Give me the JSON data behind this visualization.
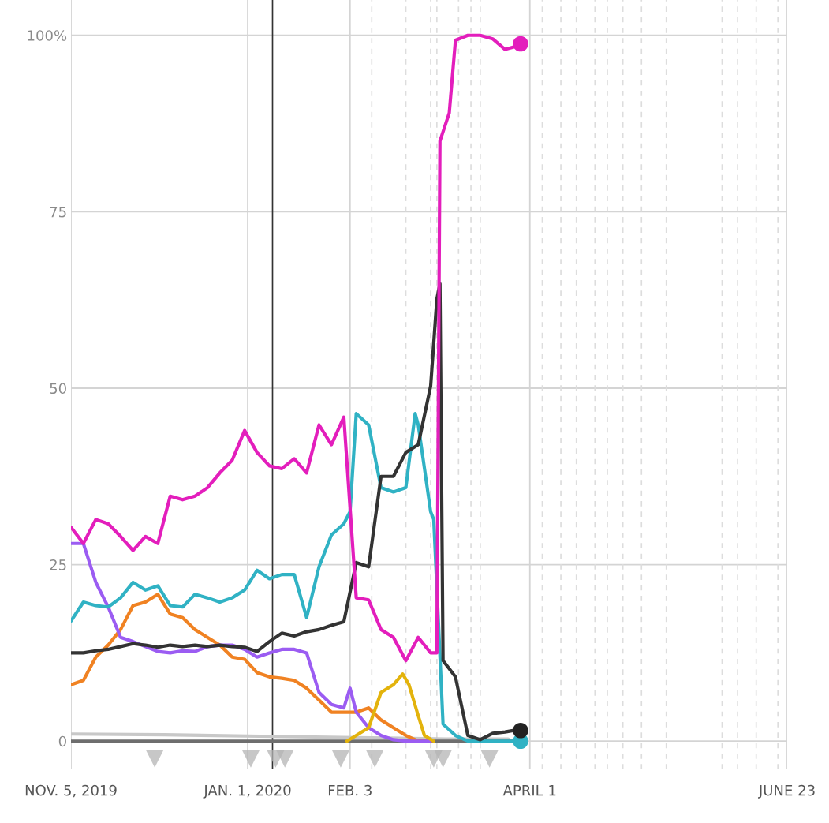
{
  "chart_data": {
    "type": "line",
    "xlim": [
      "2019-11-05",
      "2020-06-23"
    ],
    "xticks": [
      {
        "value": "2019-11-05",
        "label": "NOV. 5, 2019"
      },
      {
        "value": "2020-01-01",
        "label": "JAN. 1, 2020"
      },
      {
        "value": "2020-02-03",
        "label": "FEB. 3"
      },
      {
        "value": "2020-04-01",
        "label": "APRIL 1"
      },
      {
        "value": "2020-06-23",
        "label": "JUNE 23"
      }
    ],
    "ylim": [
      -4,
      105
    ],
    "yticks": [
      0,
      25,
      50,
      75,
      {
        "value": 100,
        "label": "100%"
      }
    ],
    "grid": true,
    "ref_lines": [
      {
        "axis": "x",
        "value": "2020-01-09",
        "color": "#333333",
        "line_style": "solid"
      },
      {
        "axis": "x",
        "value": "2020-02-10",
        "color": "#dddddd",
        "line_style": "dashed"
      },
      {
        "axis": "x",
        "value": "2020-02-21",
        "color": "#dddddd",
        "line_style": "dashed"
      },
      {
        "axis": "x",
        "value": "2020-02-29",
        "color": "#dddddd",
        "line_style": "dashed"
      },
      {
        "axis": "x",
        "value": "2020-03-02",
        "color": "#dddddd",
        "line_style": "dashed"
      },
      {
        "axis": "x",
        "value": "2020-03-09",
        "color": "#dddddd",
        "line_style": "dashed"
      },
      {
        "axis": "x",
        "value": "2020-03-13",
        "color": "#dddddd",
        "line_style": "dashed"
      },
      {
        "axis": "x",
        "value": "2020-03-16",
        "color": "#dddddd",
        "line_style": "dashed"
      },
      {
        "axis": "x",
        "value": "2020-04-05",
        "color": "#dddddd",
        "line_style": "dashed"
      },
      {
        "axis": "x",
        "value": "2020-04-11",
        "color": "#dddddd",
        "line_style": "dashed"
      },
      {
        "axis": "x",
        "value": "2020-04-16",
        "color": "#dddddd",
        "line_style": "dashed"
      },
      {
        "axis": "x",
        "value": "2020-04-22",
        "color": "#dddddd",
        "line_style": "dashed"
      },
      {
        "axis": "x",
        "value": "2020-04-26",
        "color": "#dddddd",
        "line_style": "dashed"
      },
      {
        "axis": "x",
        "value": "2020-05-01",
        "color": "#dddddd",
        "line_style": "dashed"
      },
      {
        "axis": "x",
        "value": "2020-05-07",
        "color": "#dddddd",
        "line_style": "dashed"
      },
      {
        "axis": "x",
        "value": "2020-05-15",
        "color": "#dddddd",
        "line_style": "dashed"
      },
      {
        "axis": "x",
        "value": "2020-06-02",
        "color": "#dddddd",
        "line_style": "dashed"
      },
      {
        "axis": "x",
        "value": "2020-06-07",
        "color": "#dddddd",
        "line_style": "dashed"
      },
      {
        "axis": "x",
        "value": "2020-06-13",
        "color": "#dddddd",
        "line_style": "dashed"
      },
      {
        "axis": "x",
        "value": "2020-06-20",
        "color": "#dddddd",
        "line_style": "dashed"
      }
    ],
    "series": [
      {
        "color": "#c8c8c8",
        "x": [
          "2019-11-05",
          "2019-12-05",
          "2020-01-05",
          "2020-02-05",
          "2020-03-05",
          "2020-03-25"
        ],
        "values": [
          1,
          0.9,
          0.7,
          0.5,
          0.3,
          0.3
        ]
      },
      {
        "color": "#6e6e6e",
        "x": [
          "2019-11-05",
          "2020-03-29"
        ],
        "values": [
          0,
          0
        ]
      },
      {
        "color": "#f08222",
        "x": [
          "2019-11-05",
          "2019-11-09",
          "2019-11-13",
          "2019-11-17",
          "2019-11-21",
          "2019-11-25",
          "2019-11-29",
          "2019-12-03",
          "2019-12-07",
          "2019-12-11",
          "2019-12-15",
          "2019-12-19",
          "2019-12-23",
          "2019-12-27",
          "2019-12-31",
          "2020-01-04",
          "2020-01-08",
          "2020-01-12",
          "2020-01-16",
          "2020-01-20",
          "2020-01-24",
          "2020-01-28",
          "2020-02-01",
          "2020-02-05",
          "2020-02-09",
          "2020-02-13",
          "2020-02-17",
          "2020-02-21",
          "2020-02-25",
          "2020-02-29"
        ],
        "values": [
          8,
          8.6,
          11.9,
          13.6,
          15.8,
          19.2,
          19.7,
          20.8,
          18,
          17.5,
          15.8,
          14.7,
          13.6,
          11.9,
          11.6,
          9.7,
          9.1,
          8.9,
          8.6,
          7.5,
          5.8,
          4.1,
          4.1,
          4.1,
          4.7,
          3,
          1.9,
          0.8,
          0,
          0
        ]
      },
      {
        "color": "#9b5cf2",
        "x": [
          "2019-11-05",
          "2019-11-09",
          "2019-11-13",
          "2019-11-17",
          "2019-11-21",
          "2019-11-25",
          "2019-11-29",
          "2019-12-03",
          "2019-12-07",
          "2019-12-11",
          "2019-12-15",
          "2019-12-19",
          "2019-12-23",
          "2019-12-27",
          "2019-12-31",
          "2020-01-04",
          "2020-01-08",
          "2020-01-12",
          "2020-01-16",
          "2020-01-20",
          "2020-01-24",
          "2020-01-28",
          "2020-02-01",
          "2020-02-03",
          "2020-02-05",
          "2020-02-09",
          "2020-02-13",
          "2020-02-17",
          "2020-02-21",
          "2020-02-29"
        ],
        "values": [
          28,
          28,
          22.5,
          19,
          14.7,
          14.1,
          13.4,
          12.7,
          12.5,
          12.8,
          12.7,
          13.4,
          13.6,
          13.6,
          13,
          11.9,
          12.5,
          13,
          13,
          12.5,
          6.9,
          5.2,
          4.7,
          7.5,
          4.1,
          1.9,
          0.8,
          0.2,
          0,
          0
        ]
      },
      {
        "color": "#e3b30c",
        "x": [
          "2020-02-02",
          "2020-02-05",
          "2020-02-09",
          "2020-02-13",
          "2020-02-17",
          "2020-02-20",
          "2020-02-22",
          "2020-02-25",
          "2020-02-27",
          "2020-03-01"
        ],
        "values": [
          0,
          0.8,
          1.9,
          6.9,
          8,
          9.5,
          8,
          3.6,
          0.8,
          0
        ]
      },
      {
        "color": "#30b2c4",
        "x": [
          "2019-11-05",
          "2019-11-09",
          "2019-11-13",
          "2019-11-17",
          "2019-11-21",
          "2019-11-25",
          "2019-11-29",
          "2019-12-03",
          "2019-12-07",
          "2019-12-11",
          "2019-12-15",
          "2019-12-19",
          "2019-12-23",
          "2019-12-27",
          "2019-12-31",
          "2020-01-04",
          "2020-01-08",
          "2020-01-12",
          "2020-01-16",
          "2020-01-20",
          "2020-01-24",
          "2020-01-28",
          "2020-02-01",
          "2020-02-03",
          "2020-02-05",
          "2020-02-09",
          "2020-02-13",
          "2020-02-17",
          "2020-02-21",
          "2020-02-24",
          "2020-02-25",
          "2020-02-29",
          "2020-03-01",
          "2020-03-04",
          "2020-03-08",
          "2020-03-12",
          "2020-03-16",
          "2020-03-20",
          "2020-03-24",
          "2020-03-28",
          "2020-03-29"
        ],
        "values": [
          17,
          19.7,
          19.2,
          19,
          20.3,
          22.5,
          21.4,
          22,
          19.2,
          19,
          20.8,
          20.3,
          19.7,
          20.3,
          21.4,
          24.2,
          23,
          23.6,
          23.6,
          17.5,
          24.7,
          29.2,
          30.8,
          32.5,
          46.4,
          44.8,
          35.9,
          35.3,
          35.9,
          46.4,
          44.8,
          32.5,
          31.4,
          2.4,
          0.8,
          0,
          0,
          0,
          0,
          0,
          0
        ]
      },
      {
        "color": "#333333",
        "x": [
          "2019-11-05",
          "2019-11-09",
          "2019-11-13",
          "2019-11-17",
          "2019-11-21",
          "2019-11-25",
          "2019-11-29",
          "2019-12-03",
          "2019-12-07",
          "2019-12-11",
          "2019-12-15",
          "2019-12-19",
          "2019-12-23",
          "2019-12-27",
          "2019-12-31",
          "2020-01-04",
          "2020-01-08",
          "2020-01-12",
          "2020-01-16",
          "2020-01-20",
          "2020-01-24",
          "2020-01-28",
          "2020-02-01",
          "2020-02-05",
          "2020-02-09",
          "2020-02-13",
          "2020-02-17",
          "2020-02-21",
          "2020-02-25",
          "2020-02-29",
          "2020-03-02",
          "2020-03-03",
          "2020-03-04",
          "2020-03-08",
          "2020-03-12",
          "2020-03-16",
          "2020-03-20",
          "2020-03-24",
          "2020-03-28",
          "2020-03-29"
        ],
        "values": [
          12.5,
          12.5,
          12.8,
          13,
          13.4,
          13.8,
          13.6,
          13.3,
          13.6,
          13.4,
          13.6,
          13.4,
          13.6,
          13.4,
          13.3,
          12.7,
          14.1,
          15.3,
          14.9,
          15.5,
          15.8,
          16.4,
          16.9,
          25.3,
          24.7,
          37.5,
          37.5,
          40.9,
          42,
          50.3,
          62.6,
          64.8,
          11.4,
          9.1,
          0.8,
          0.2,
          1.1,
          1.3,
          1.6,
          1.5
        ]
      },
      {
        "color": "#e31ebc",
        "x": [
          "2019-11-05",
          "2019-11-09",
          "2019-11-13",
          "2019-11-17",
          "2019-11-21",
          "2019-11-25",
          "2019-11-29",
          "2019-12-03",
          "2019-12-07",
          "2019-12-11",
          "2019-12-15",
          "2019-12-19",
          "2019-12-23",
          "2019-12-27",
          "2019-12-31",
          "2020-01-04",
          "2020-01-08",
          "2020-01-12",
          "2020-01-16",
          "2020-01-20",
          "2020-01-24",
          "2020-01-28",
          "2020-02-01",
          "2020-02-05",
          "2020-02-09",
          "2020-02-13",
          "2020-02-17",
          "2020-02-21",
          "2020-02-25",
          "2020-02-29",
          "2020-03-02",
          "2020-03-03",
          "2020-03-06",
          "2020-03-08",
          "2020-03-12",
          "2020-03-16",
          "2020-03-20",
          "2020-03-24",
          "2020-03-28",
          "2020-03-29"
        ],
        "values": [
          30.3,
          28,
          31.4,
          30.8,
          29,
          27,
          29,
          28,
          34.7,
          34.2,
          34.7,
          35.9,
          38,
          39.8,
          44,
          40.9,
          39,
          38.6,
          40,
          38,
          44.8,
          42,
          45.9,
          20.3,
          20,
          15.8,
          14.7,
          11.4,
          14.7,
          12.5,
          12.5,
          85,
          89,
          99.3,
          100,
          100,
          99.5,
          98,
          98.5,
          98.8
        ]
      },
      {
        "type": "scatter",
        "marker": "circle",
        "color": "#30b2c4",
        "x": [
          "2020-03-29"
        ],
        "values": [
          0
        ]
      },
      {
        "type": "scatter",
        "marker": "circle",
        "color": "#222222",
        "x": [
          "2020-03-29"
        ],
        "values": [
          1.5
        ]
      },
      {
        "type": "scatter",
        "marker": "circle",
        "color": "#e31ebc",
        "x": [
          "2020-03-29"
        ],
        "values": [
          98.8
        ]
      },
      {
        "type": "scatter",
        "marker": "triangle",
        "color": "#b4b4b4",
        "x": [
          "2019-12-02",
          "2020-01-02",
          "2020-01-10",
          "2020-01-13",
          "2020-01-31",
          "2020-02-11",
          "2020-03-01",
          "2020-03-04",
          "2020-03-19"
        ],
        "values": [
          -2.5,
          -2.5,
          -2.5,
          -2.5,
          -2.5,
          -2.5,
          -2.5,
          -2.5,
          -2.5
        ]
      }
    ]
  }
}
